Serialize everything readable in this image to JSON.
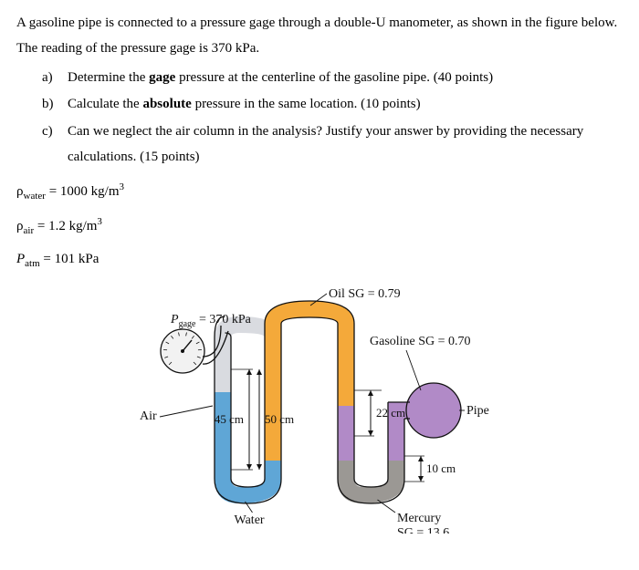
{
  "intro": "A gasoline pipe is connected to a pressure gage through a double-U manometer, as shown in the figure below. The reading of the pressure gage is 370 kPa.",
  "questions": {
    "a": {
      "letter": "a)",
      "text_pre": "Determine the ",
      "bold1": "gage",
      "text_post": " pressure at the centerline of the gasoline pipe. (40 points)"
    },
    "b": {
      "letter": "b)",
      "text_pre": "Calculate the ",
      "bold1": "absolute",
      "text_post": " pressure in the same location. (10 points)"
    },
    "c": {
      "letter": "c)",
      "text": "Can we neglect the air column in the analysis? Justify your answer by providing the necessary calculations. (15 points)"
    }
  },
  "given": {
    "water": {
      "sym": "ρ",
      "sub": "water",
      "val": " = 1000 kg/m",
      "sup": "3"
    },
    "air": {
      "sym": "ρ",
      "sub": "air",
      "val": " = 1.2 kg/m",
      "sup": "3"
    },
    "patm": {
      "sym": "P",
      "sub": "atm",
      "val": " = 101 kPa",
      "sup": ""
    }
  },
  "figure": {
    "pgage_label_pre": "P",
    "pgage_label_sub": "gage",
    "pgage_label_post": " = 370 kPa",
    "air_label": "Air",
    "h_air": "45 cm",
    "h_oil": "50 cm",
    "h_gasoline": "22 cm",
    "h_mercury": "10 cm",
    "oil_label": "Oil SG = 0.79",
    "gasoline_label": "Gasoline SG = 0.70",
    "pipe_label": "Pipe",
    "water_label": "Water",
    "mercury_label_l1": "Mercury",
    "mercury_label_l2": "SG = 13.6",
    "colors": {
      "air_fill": "#d9dbe0",
      "oil_fill": "#f4a93a",
      "water_fill": "#5fa6d6",
      "gasoline_fill": "#b18ac7",
      "mercury_fill": "#9b9894",
      "pipe_fill": "#b18ac7",
      "gauge_fill": "#f2f2f2",
      "stroke": "#111111",
      "label": "#111111",
      "dim": "#111111"
    },
    "stroke_width": 1.3
  }
}
